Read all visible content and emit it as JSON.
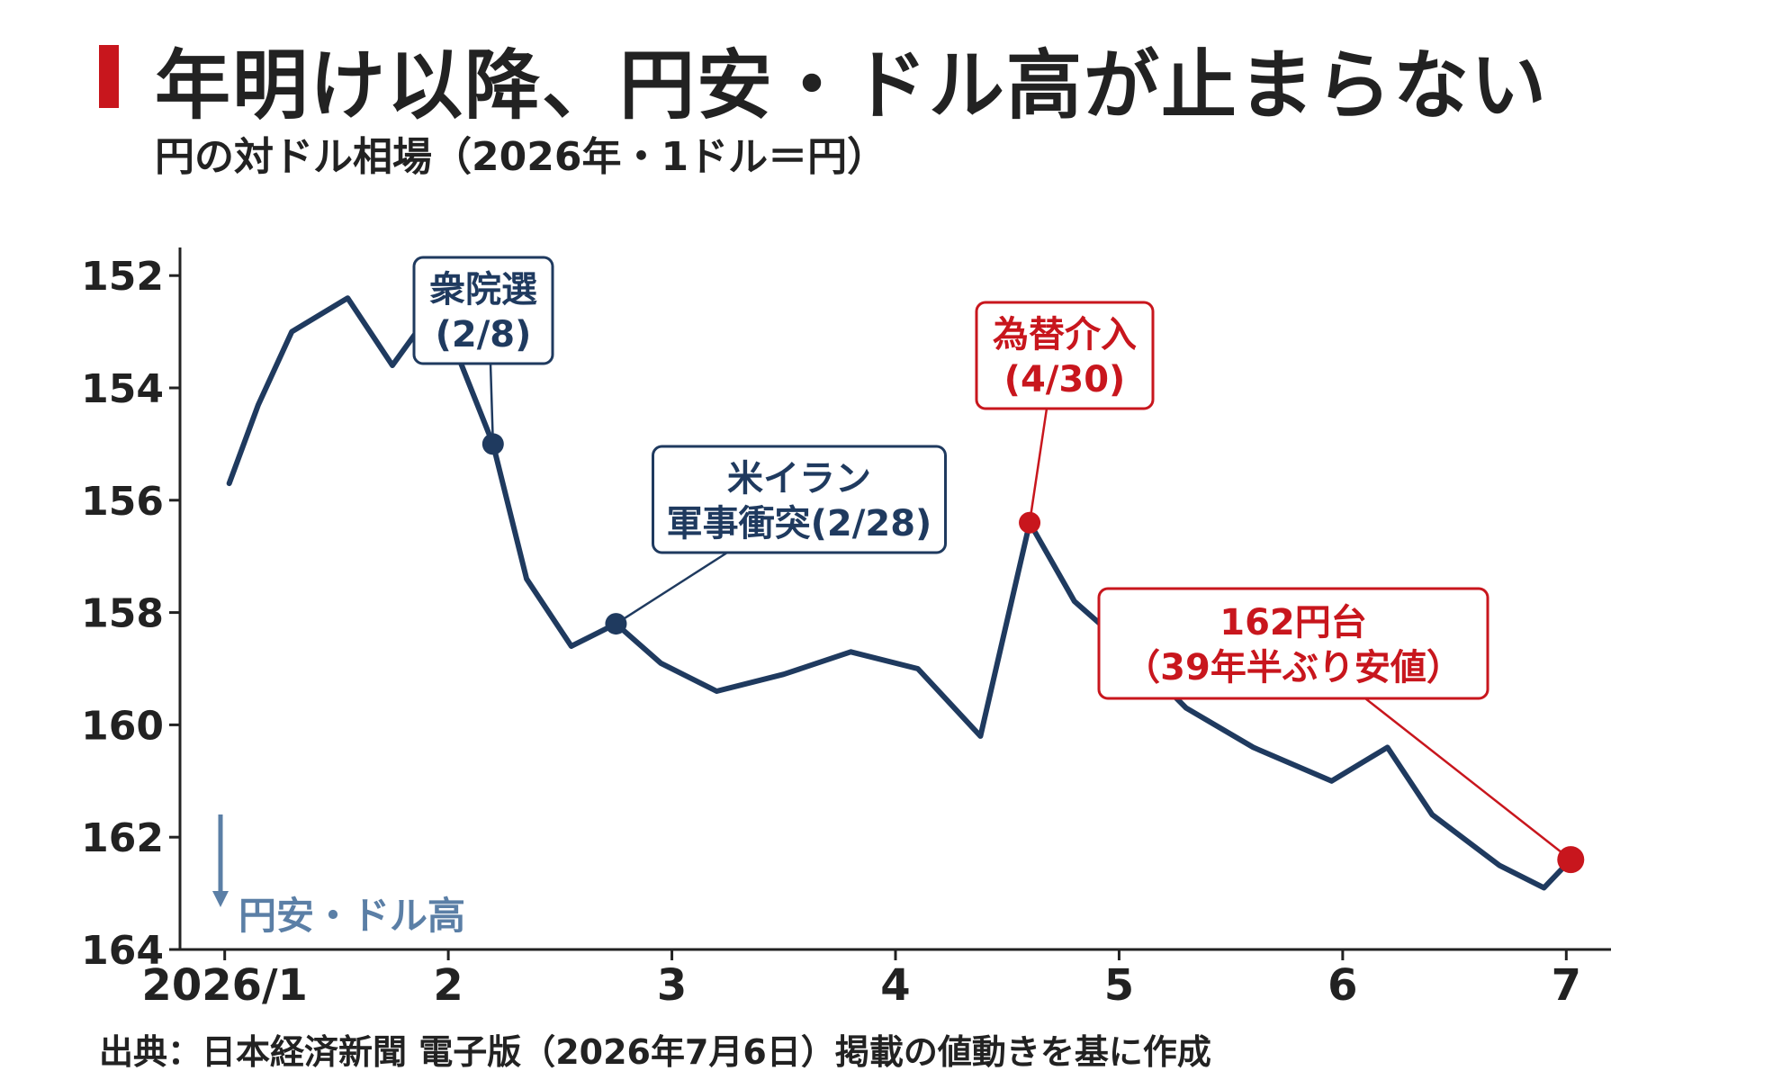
{
  "header": {
    "title": "年明け以降、円安・ドル高が止まらない",
    "subtitle": "円の対ドル相場（2026年・1ドル＝円）",
    "accent_color": "#c8161d"
  },
  "footer": {
    "source": "出典：日本経済新聞 電子版（2026年7月6日）掲載の値動きを基に作成"
  },
  "chart_data": {
    "type": "line",
    "xlabel": "",
    "ylabel": "",
    "y_inverted": true,
    "ylim": [
      164,
      151.5
    ],
    "xlim": [
      0.8,
      7.2
    ],
    "y_ticks": [
      152,
      154,
      156,
      158,
      160,
      162,
      164
    ],
    "x_ticks": [
      {
        "value": 1,
        "label": "2026/1"
      },
      {
        "value": 2,
        "label": "2"
      },
      {
        "value": 3,
        "label": "3"
      },
      {
        "value": 4,
        "label": "4"
      },
      {
        "value": 5,
        "label": "5"
      },
      {
        "value": 6,
        "label": "6"
      },
      {
        "value": 7,
        "label": "7"
      }
    ],
    "grid": false,
    "series": [
      {
        "color": "#1f3a5f",
        "x": [
          1.02,
          1.15,
          1.3,
          1.55,
          1.75,
          1.95,
          2.2,
          2.35,
          2.55,
          2.75,
          2.95,
          3.2,
          3.5,
          3.8,
          4.1,
          4.38,
          4.6,
          4.8,
          5.0,
          5.3,
          5.6,
          5.95,
          6.2,
          6.4,
          6.7,
          6.9,
          7.02
        ],
        "y": [
          155.7,
          154.3,
          153.0,
          152.4,
          153.6,
          152.5,
          155.0,
          157.4,
          158.6,
          158.2,
          158.9,
          159.4,
          159.1,
          158.7,
          159.0,
          160.2,
          156.4,
          157.8,
          158.5,
          159.7,
          160.4,
          161.0,
          160.4,
          161.6,
          162.5,
          162.9,
          162.4
        ]
      }
    ],
    "annotations": [
      {
        "label_lines": [
          "衆院選",
          "(2/8)"
        ],
        "x": 2.2,
        "y": 155.0,
        "color": "#1f3a5f"
      },
      {
        "label_lines": [
          "米イラン",
          "軍事衝突(2/28)"
        ],
        "x": 2.75,
        "y": 158.2,
        "color": "#1f3a5f"
      },
      {
        "label_lines": [
          "為替介入",
          "(4/30)"
        ],
        "x": 4.6,
        "y": 156.4,
        "color": "#c8161d"
      },
      {
        "label_lines": [
          "162円台",
          "（39年半ぶり安値）"
        ],
        "x": 7.02,
        "y": 162.4,
        "color": "#c8161d"
      }
    ],
    "direction_note": {
      "label": "円安・ドル高",
      "color": "#5b7fa6"
    }
  }
}
